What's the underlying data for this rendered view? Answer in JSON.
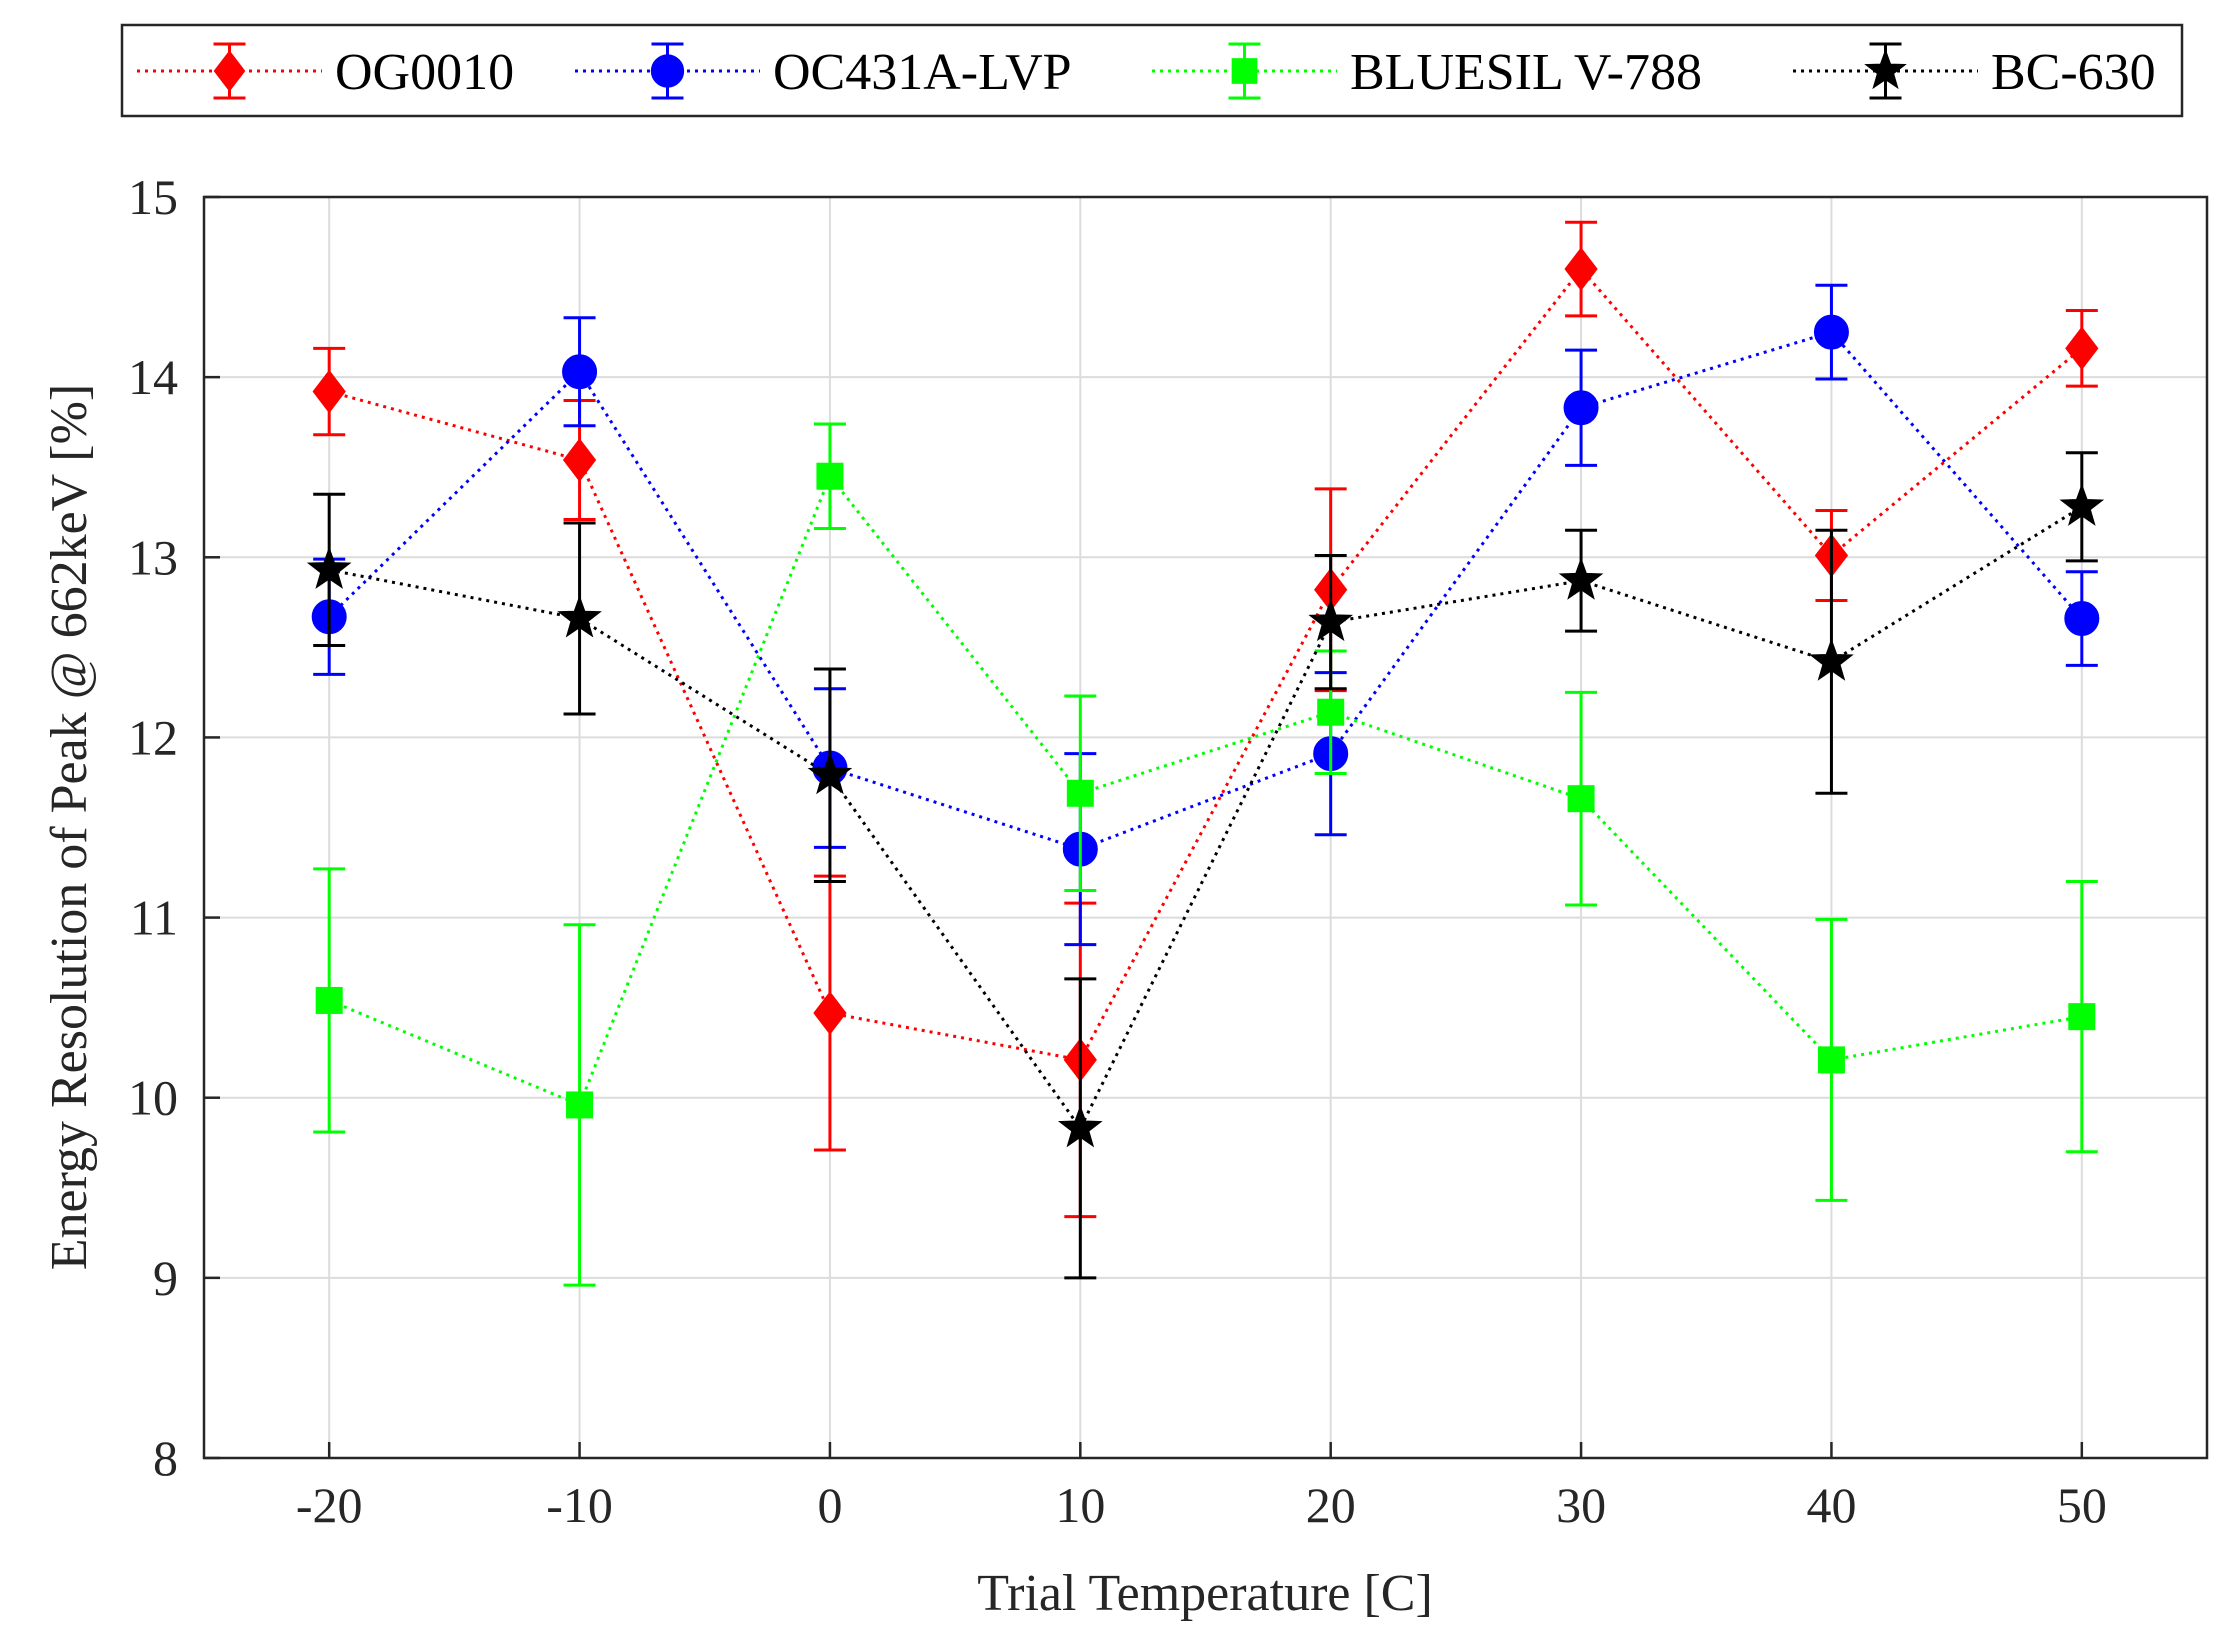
{
  "chart_data": {
    "type": "line",
    "title": "",
    "xlabel": "Trial Temperature [C]",
    "ylabel": "Energy Resolution of Peak @ 662keV [%]",
    "xlim": [
      -25,
      55
    ],
    "ylim": [
      8,
      15
    ],
    "xticks": [
      "-20",
      "-10",
      "0",
      "10",
      "20",
      "30",
      "40",
      "50"
    ],
    "yticks": [
      "8",
      "9",
      "10",
      "11",
      "12",
      "13",
      "14",
      "15"
    ],
    "grid": true,
    "legend_position": "top, outside, horizontal",
    "x": [
      -20,
      -10,
      0,
      10,
      20,
      30,
      40,
      50
    ],
    "series": [
      {
        "name": "OG0010",
        "color": "#ff0000",
        "marker": "diamond",
        "values": [
          13.92,
          13.54,
          10.47,
          10.21,
          12.82,
          14.6,
          13.01,
          14.16
        ],
        "errors": [
          0.24,
          0.33,
          0.76,
          0.87,
          0.56,
          0.26,
          0.25,
          0.21
        ]
      },
      {
        "name": "OC431A-LVP",
        "color": "#0000ff",
        "marker": "circle",
        "values": [
          12.67,
          14.03,
          11.83,
          11.38,
          11.91,
          13.83,
          14.25,
          12.66
        ],
        "errors": [
          0.32,
          0.3,
          0.44,
          0.53,
          0.45,
          0.32,
          0.26,
          0.26
        ]
      },
      {
        "name": "BLUESIL V-788",
        "color": "#00ff00",
        "marker": "square",
        "values": [
          10.54,
          9.96,
          13.45,
          11.69,
          12.14,
          11.66,
          10.21,
          10.45
        ],
        "errors": [
          0.73,
          1.0,
          0.29,
          0.54,
          0.34,
          0.59,
          0.78,
          0.75
        ]
      },
      {
        "name": "BC-630",
        "color": "#000000",
        "marker": "star",
        "values": [
          12.93,
          12.66,
          11.79,
          9.83,
          12.64,
          12.87,
          12.42,
          13.28
        ],
        "errors": [
          0.42,
          0.53,
          0.59,
          0.83,
          0.37,
          0.28,
          0.73,
          0.3
        ]
      }
    ]
  }
}
